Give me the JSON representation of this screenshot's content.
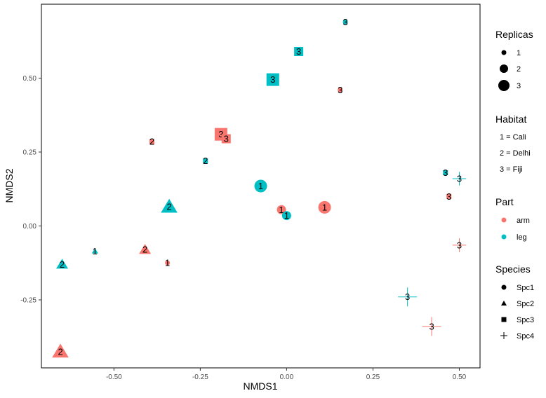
{
  "chart_data": {
    "type": "scatter",
    "xlabel": "NMDS1",
    "ylabel": "NMDS2",
    "xlim": [
      -0.71,
      0.56
    ],
    "ylim": [
      -0.48,
      0.75
    ],
    "xticks": [
      -0.5,
      -0.25,
      0,
      0.25,
      0.5
    ],
    "xtick_labels": [
      "-0.50",
      "-0.25",
      "0.00",
      "0.25",
      "0.50"
    ],
    "yticks": [
      -0.25,
      0,
      0.25,
      0.5
    ],
    "ytick_labels": [
      "-0.25",
      "0.00",
      "0.25",
      "0.50"
    ],
    "grid": false,
    "legend_position": "right",
    "colors": {
      "arm": "#F8766D",
      "leg": "#00BFC4"
    },
    "points": [
      {
        "x": 0.17,
        "y": 0.69,
        "species": "Spc1",
        "part": "leg",
        "habitat": "3",
        "replicas": 1
      },
      {
        "x": 0.035,
        "y": 0.59,
        "species": "Spc3",
        "part": "leg",
        "habitat": "3",
        "replicas": 2
      },
      {
        "x": -0.04,
        "y": 0.495,
        "species": "Spc3",
        "part": "leg",
        "habitat": "3",
        "replicas": 3
      },
      {
        "x": 0.155,
        "y": 0.46,
        "species": "Spc1",
        "part": "arm",
        "habitat": "3",
        "replicas": 1
      },
      {
        "x": -0.19,
        "y": 0.31,
        "species": "Spc3",
        "part": "arm",
        "habitat": "3",
        "replicas": 3
      },
      {
        "x": -0.175,
        "y": 0.295,
        "species": "Spc3",
        "part": "arm",
        "habitat": "3",
        "replicas": 2
      },
      {
        "x": -0.39,
        "y": 0.285,
        "species": "Spc3",
        "part": "arm",
        "habitat": "2",
        "replicas": 1
      },
      {
        "x": -0.235,
        "y": 0.22,
        "species": "Spc3",
        "part": "leg",
        "habitat": "2",
        "replicas": 1
      },
      {
        "x": -0.075,
        "y": 0.135,
        "species": "Spc1",
        "part": "leg",
        "habitat": "1",
        "replicas": 3
      },
      {
        "x": -0.015,
        "y": 0.055,
        "species": "Spc1",
        "part": "arm",
        "habitat": "1",
        "replicas": 2
      },
      {
        "x": 0.0,
        "y": 0.035,
        "species": "Spc1",
        "part": "leg",
        "habitat": "1",
        "replicas": 2
      },
      {
        "x": 0.11,
        "y": 0.063,
        "species": "Spc1",
        "part": "arm",
        "habitat": "1",
        "replicas": 3
      },
      {
        "x": -0.34,
        "y": 0.065,
        "species": "Spc2",
        "part": "leg",
        "habitat": "2",
        "replicas": 3
      },
      {
        "x": 0.46,
        "y": 0.18,
        "species": "Spc3",
        "part": "leg",
        "habitat": "3",
        "replicas": 1
      },
      {
        "x": 0.5,
        "y": 0.16,
        "species": "Spc4",
        "part": "leg",
        "habitat": "3",
        "replicas": 2
      },
      {
        "x": 0.47,
        "y": 0.1,
        "species": "Spc3",
        "part": "arm",
        "habitat": "3",
        "replicas": 1
      },
      {
        "x": 0.5,
        "y": -0.065,
        "species": "Spc4",
        "part": "arm",
        "habitat": "3",
        "replicas": 2
      },
      {
        "x": -0.555,
        "y": -0.085,
        "species": "Spc2",
        "part": "leg",
        "habitat": "1",
        "replicas": 1
      },
      {
        "x": -0.41,
        "y": -0.08,
        "species": "Spc2",
        "part": "arm",
        "habitat": "2",
        "replicas": 2
      },
      {
        "x": -0.345,
        "y": -0.125,
        "species": "Spc1",
        "part": "arm",
        "habitat": "1",
        "replicas": 1
      },
      {
        "x": -0.65,
        "y": -0.13,
        "species": "Spc2",
        "part": "leg",
        "habitat": "2",
        "replicas": 2
      },
      {
        "x": 0.35,
        "y": -0.24,
        "species": "Spc4",
        "part": "leg",
        "habitat": "3",
        "replicas": 3
      },
      {
        "x": 0.42,
        "y": -0.34,
        "species": "Spc4",
        "part": "arm",
        "habitat": "3",
        "replicas": 3
      },
      {
        "x": -0.655,
        "y": -0.425,
        "species": "Spc2",
        "part": "arm",
        "habitat": "2",
        "replicas": 3
      }
    ]
  },
  "legend": {
    "replicas": {
      "title": "Replicas",
      "items": [
        "1",
        "2",
        "3"
      ]
    },
    "habitat": {
      "title": "Habitat",
      "items": [
        "1 = Cali",
        "2 = Delhi",
        "3 = Fiji"
      ]
    },
    "part": {
      "title": "Part",
      "items": [
        "arm",
        "leg"
      ]
    },
    "species": {
      "title": "Species",
      "items": [
        "Spc1",
        "Spc2",
        "Spc3",
        "Spc4"
      ]
    }
  }
}
